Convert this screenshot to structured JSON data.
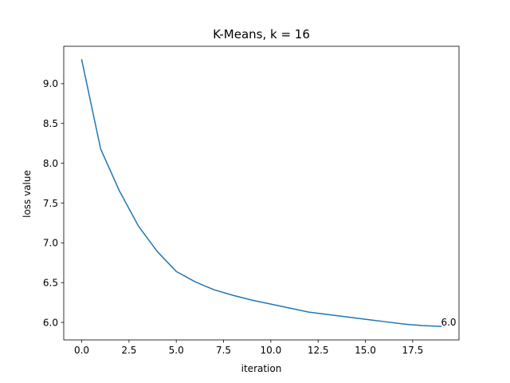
{
  "chart_data": {
    "type": "line",
    "title": "K-Means, k = 16",
    "xlabel": "iteration",
    "ylabel": "loss value",
    "xlim": [
      -0.95,
      19.95
    ],
    "ylim": [
      5.78,
      9.47
    ],
    "x_ticks": [
      0,
      2.5,
      5,
      7.5,
      10,
      12.5,
      15,
      17.5
    ],
    "x_tick_labels": [
      "0.0",
      "2.5",
      "5.0",
      "7.5",
      "10.0",
      "12.5",
      "15.0",
      "17.5"
    ],
    "y_ticks": [
      6.0,
      6.5,
      7.0,
      7.5,
      8.0,
      8.5,
      9.0
    ],
    "y_tick_labels": [
      "6.0",
      "6.5",
      "7.0",
      "7.5",
      "8.0",
      "8.5",
      "9.0"
    ],
    "grid": false,
    "series": [
      {
        "color": "#1f77b4",
        "x": [
          0,
          1,
          2,
          3,
          4,
          5,
          6,
          7,
          8,
          9,
          10,
          11,
          12,
          13,
          14,
          15,
          16,
          17,
          18,
          19
        ],
        "y": [
          9.3,
          8.18,
          7.65,
          7.21,
          6.89,
          6.64,
          6.51,
          6.41,
          6.34,
          6.28,
          6.23,
          6.18,
          6.13,
          6.1,
          6.07,
          6.04,
          6.01,
          5.98,
          5.96,
          5.95
        ]
      }
    ],
    "annotations": [
      {
        "text": "6.0",
        "x": 19,
        "y": 5.95
      }
    ]
  }
}
